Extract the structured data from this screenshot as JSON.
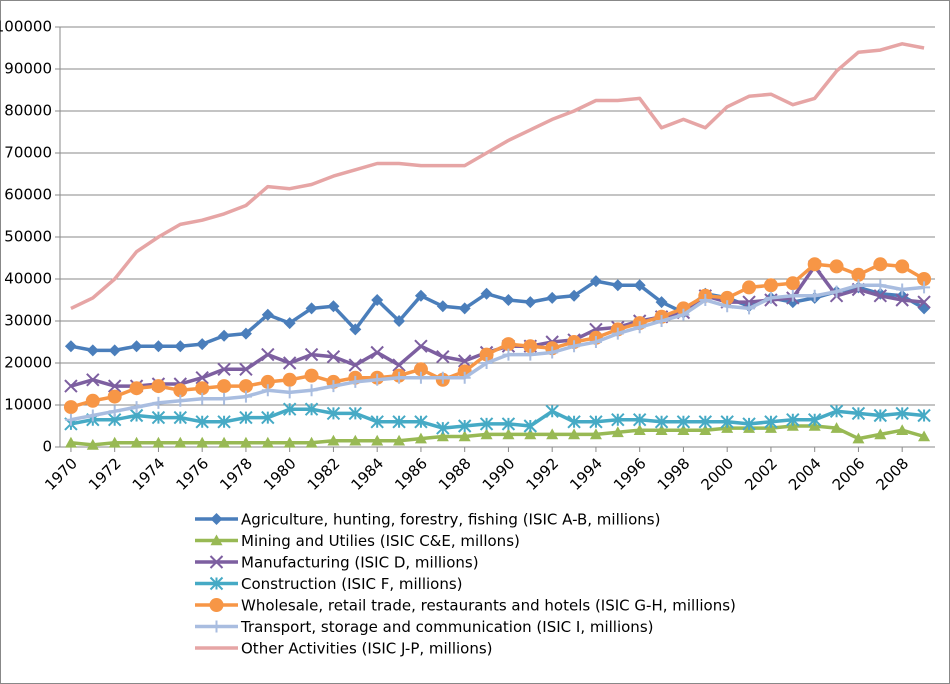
{
  "chart_data": {
    "type": "line",
    "x": [
      1970,
      1971,
      1972,
      1973,
      1974,
      1975,
      1976,
      1977,
      1978,
      1979,
      1980,
      1981,
      1982,
      1983,
      1984,
      1985,
      1986,
      1987,
      1988,
      1989,
      1990,
      1991,
      1992,
      1993,
      1994,
      1995,
      1996,
      1997,
      1998,
      1999,
      2000,
      2001,
      2002,
      2003,
      2004,
      2005,
      2006,
      2007,
      2008,
      2009
    ],
    "xlim": [
      1969.5,
      2009.5
    ],
    "xticks": [
      1970,
      1972,
      1974,
      1976,
      1978,
      1980,
      1982,
      1984,
      1986,
      1988,
      1990,
      1992,
      1994,
      1996,
      1998,
      2000,
      2002,
      2004,
      2006,
      2008
    ],
    "ylim": [
      0,
      100000
    ],
    "yticks": [
      0,
      10000,
      20000,
      30000,
      40000,
      50000,
      60000,
      70000,
      80000,
      90000,
      100000
    ],
    "grid": true,
    "legend": "bottom",
    "series": [
      {
        "name": "Agriculture, hunting, forestry, fishing (ISIC A-B, millions)",
        "color": "#4a7ebb",
        "marker": "diamond",
        "values": [
          24000,
          23000,
          23000,
          24000,
          24000,
          24000,
          24500,
          26500,
          27000,
          31500,
          29500,
          33000,
          33500,
          28000,
          35000,
          30000,
          36000,
          33500,
          33000,
          36500,
          35000,
          34500,
          35500,
          36000,
          39500,
          38500,
          38500,
          34500,
          32000,
          36500,
          35500,
          33500,
          35500,
          34500,
          35500,
          37000,
          38000,
          36500,
          36000,
          33000
        ]
      },
      {
        "name": "Mining and Utilies (ISIC C&E, millons)",
        "color": "#98b954",
        "marker": "triangle",
        "values": [
          1000,
          500,
          1000,
          1000,
          1000,
          1000,
          1000,
          1000,
          1000,
          1000,
          1000,
          1000,
          1500,
          1500,
          1500,
          1500,
          2000,
          2500,
          2500,
          3000,
          3000,
          3000,
          3000,
          3000,
          3000,
          3500,
          4000,
          4000,
          4000,
          4000,
          4500,
          4500,
          4500,
          5000,
          5000,
          4500,
          2000,
          3000,
          4000,
          2500
        ]
      },
      {
        "name": "Manufacturing (ISIC D, millions)",
        "color": "#7d5fa0",
        "marker": "x",
        "values": [
          14500,
          16000,
          14500,
          14500,
          15000,
          15000,
          16500,
          18500,
          18500,
          22000,
          20000,
          22000,
          21500,
          19500,
          22500,
          19500,
          24000,
          21500,
          20500,
          22500,
          24000,
          24000,
          25000,
          25500,
          28000,
          28500,
          30000,
          31000,
          32000,
          36000,
          34500,
          34500,
          35000,
          35500,
          43000,
          36000,
          37500,
          36000,
          35000,
          34500
        ]
      },
      {
        "name": "Construction (ISIC F, millions)",
        "color": "#46aac5",
        "marker": "asterisk",
        "values": [
          5500,
          6500,
          6500,
          7500,
          7000,
          7000,
          6000,
          6000,
          7000,
          7000,
          9000,
          9000,
          8000,
          8000,
          6000,
          6000,
          6000,
          4500,
          5000,
          5500,
          5500,
          5000,
          8500,
          6000,
          6000,
          6500,
          6500,
          6000,
          6000,
          6000,
          6000,
          5500,
          6000,
          6500,
          6500,
          8500,
          8000,
          7500,
          8000,
          7500
        ]
      },
      {
        "name": "Wholesale, retail trade, restaurants and hotels (ISIC G-H, millions)",
        "color": "#f79646",
        "marker": "circle",
        "values": [
          9500,
          11000,
          12000,
          14000,
          14500,
          13500,
          14000,
          14500,
          14500,
          15500,
          16000,
          17000,
          15500,
          16500,
          16500,
          17000,
          18500,
          16000,
          18000,
          22000,
          24500,
          24000,
          23500,
          25000,
          26000,
          28000,
          29500,
          31000,
          33000,
          36000,
          35500,
          38000,
          38500,
          39000,
          43500,
          43000,
          41000,
          43500,
          43000,
          40000
        ]
      },
      {
        "name": "Transport, storage and communication (ISIC I, millions)",
        "color": "#a9bde0",
        "marker": "plus",
        "values": [
          6500,
          7500,
          8500,
          9500,
          10500,
          11000,
          11500,
          11500,
          12000,
          13500,
          13000,
          13500,
          14500,
          15500,
          16000,
          16500,
          16500,
          16500,
          16500,
          20000,
          22000,
          22000,
          22500,
          24000,
          25000,
          27000,
          28500,
          30000,
          31500,
          35000,
          33500,
          33000,
          35500,
          36000,
          36000,
          37000,
          38500,
          38500,
          37500,
          38000
        ]
      },
      {
        "name": "Other Activities (ISIC J-P, millions)",
        "color": "#e6a5a5",
        "marker": "none",
        "values": [
          33000,
          35500,
          40000,
          46500,
          50000,
          53000,
          54000,
          55500,
          57500,
          62000,
          61500,
          62500,
          64500,
          66000,
          67500,
          67500,
          67000,
          67000,
          67000,
          70000,
          73000,
          75500,
          78000,
          80000,
          82500,
          82500,
          83000,
          76000,
          78000,
          76000,
          81000,
          83500,
          84000,
          81500,
          83000,
          89500,
          94000,
          94500,
          96000,
          95000
        ]
      }
    ]
  }
}
